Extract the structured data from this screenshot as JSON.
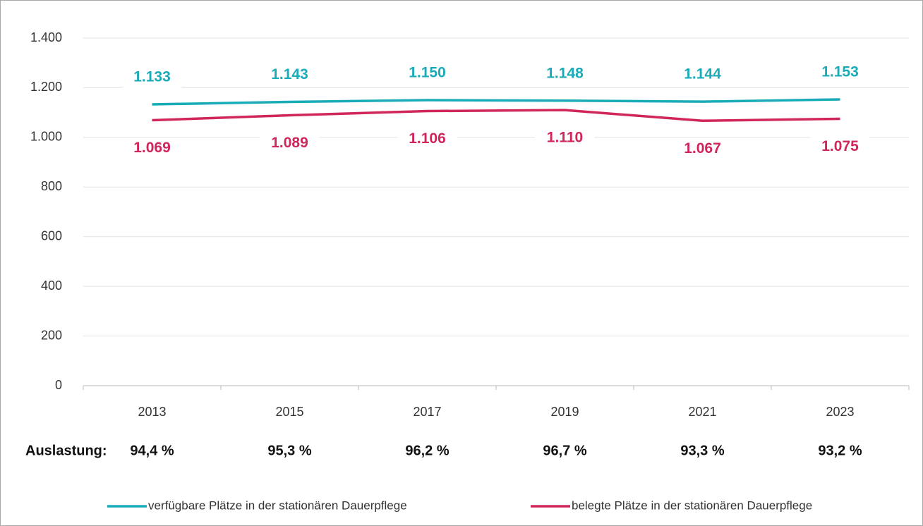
{
  "chart_data": {
    "type": "line",
    "categories": [
      "2013",
      "2015",
      "2017",
      "2019",
      "2021",
      "2023"
    ],
    "series": [
      {
        "name": "verfügbare Plätze in der stationären Dauerpflege",
        "color": "#1aabb9",
        "values": [
          1133,
          1143,
          1150,
          1148,
          1144,
          1153
        ],
        "value_labels": [
          "1.133",
          "1.143",
          "1.150",
          "1.148",
          "1.144",
          "1.153"
        ]
      },
      {
        "name": "belegte Plätze in der stationären Dauerpflege",
        "color": "#d0265a",
        "values": [
          1069,
          1089,
          1106,
          1110,
          1067,
          1075
        ],
        "value_labels": [
          "1.069",
          "1.089",
          "1.106",
          "1.110",
          "1.067",
          "1.075"
        ]
      }
    ],
    "ylim": [
      0,
      1400
    ],
    "yticks": [
      0,
      200,
      400,
      600,
      800,
      {
        "value": 1000,
        "label": "1.000"
      },
      {
        "value": 1200,
        "label": "1.200"
      },
      {
        "value": 1400,
        "label": "1.400"
      }
    ],
    "grid": true,
    "legend": "bottom",
    "annotation_row": {
      "label": "Auslastung:",
      "texts": [
        "94,4 %",
        "95,3 %",
        "96,2 %",
        "96,7 %",
        "93,3 %",
        "93,2 %"
      ]
    }
  }
}
